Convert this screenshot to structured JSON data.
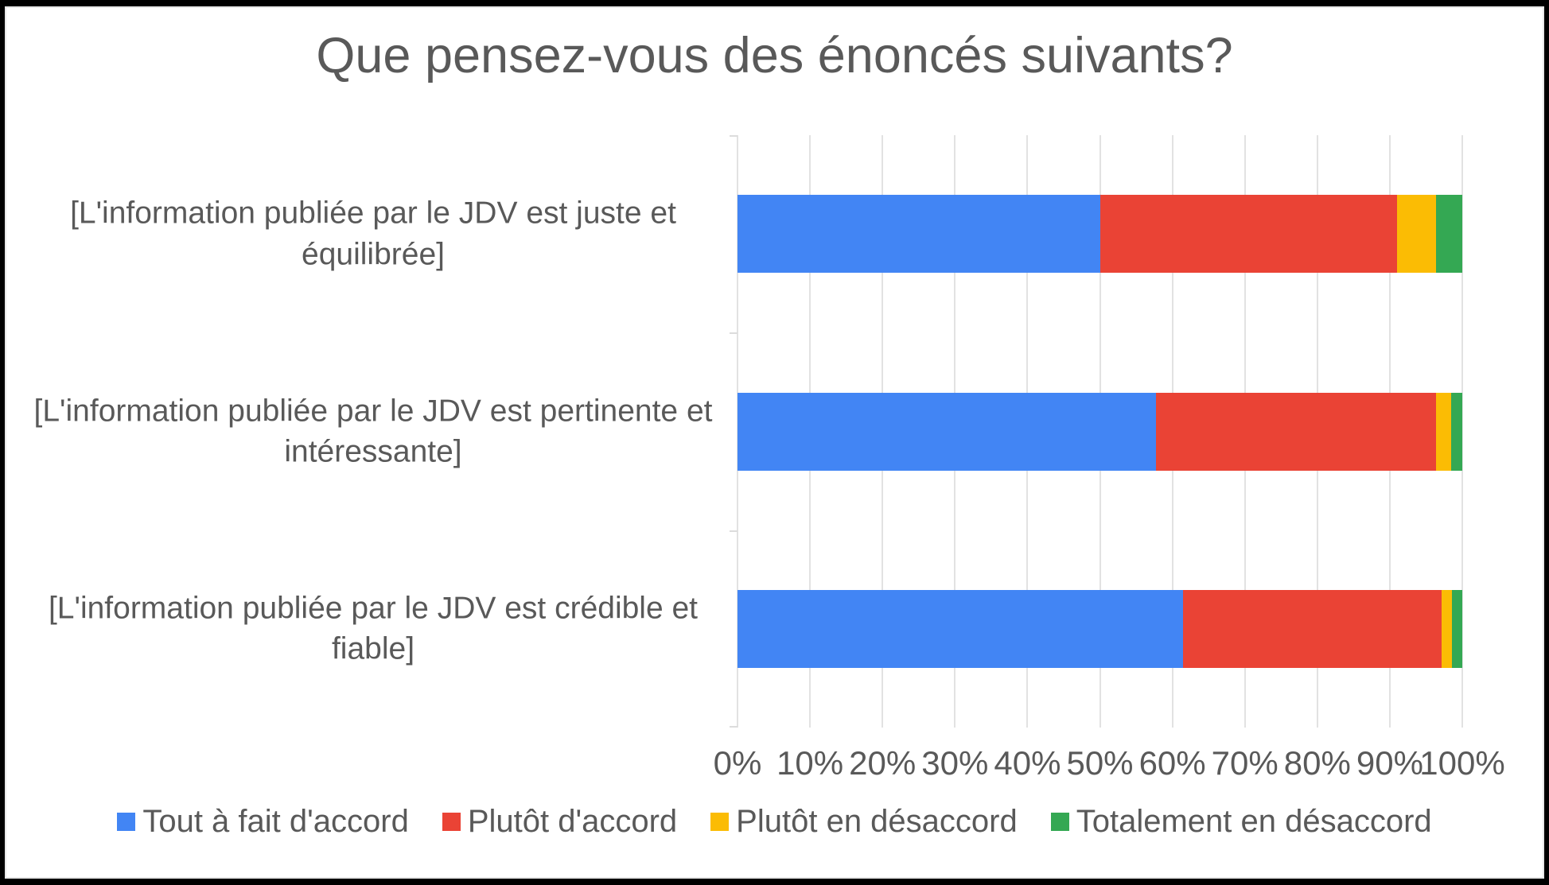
{
  "title": "Que pensez-vous des énoncés suivants?",
  "colors": {
    "background": "#ffffff",
    "frame": "#000000",
    "text": "#595959",
    "grid": "#e2e2e2",
    "series_blue": "#4285F4",
    "series_red": "#EA4335",
    "series_yellow": "#FBBC04",
    "series_green": "#34A853"
  },
  "chart_data": {
    "type": "bar",
    "orientation": "horizontal",
    "stacked": true,
    "unit": "%",
    "title": "Que pensez-vous des énoncés suivants?",
    "categories": [
      "[L'information publiée par le JDV est juste et équilibrée]",
      "[L'information publiée par le JDV est pertinente et intéressante]",
      "[L'information publiée par le JDV est crédible et fiable]"
    ],
    "series": [
      {
        "name": "Tout à fait d'accord",
        "color": "#4285F4",
        "values": [
          50.0,
          57.7,
          61.5
        ]
      },
      {
        "name": "Plutôt d'accord",
        "color": "#EA4335",
        "values": [
          41.0,
          38.7,
          35.6
        ]
      },
      {
        "name": "Plutôt en désaccord",
        "color": "#FBBC04",
        "values": [
          5.4,
          2.1,
          1.5
        ]
      },
      {
        "name": "Totalement en désaccord",
        "color": "#34A853",
        "values": [
          3.6,
          1.5,
          1.4
        ]
      }
    ],
    "x_axis": {
      "min": 0,
      "max": 100,
      "tick_step": 10,
      "ticks": [
        "0%",
        "10%",
        "20%",
        "30%",
        "40%",
        "50%",
        "60%",
        "70%",
        "80%",
        "90%",
        "100%"
      ],
      "grid": true
    },
    "y_axis": {
      "label": ""
    },
    "legend_position": "bottom"
  }
}
